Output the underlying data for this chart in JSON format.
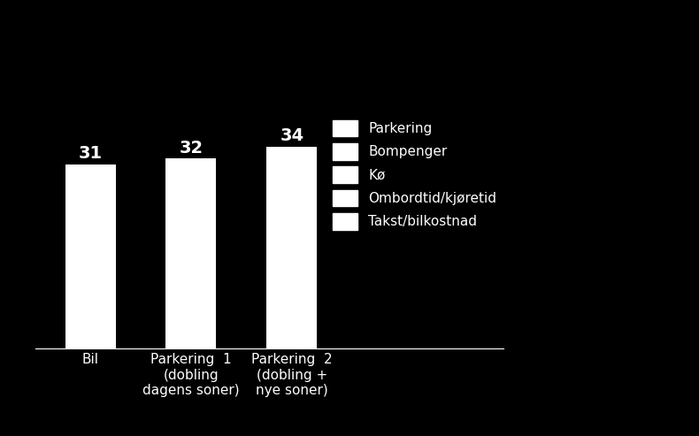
{
  "categories": [
    "Bil",
    "Parkering  1\n(dobling\ndagens soner)",
    "Parkering  2\n(dobling +\nnye soner)"
  ],
  "values": [
    31,
    32,
    34
  ],
  "bar_color": "#ffffff",
  "bar_edgecolor": "#ffffff",
  "background_color": "#000000",
  "text_color": "#ffffff",
  "value_labels": [
    "31",
    "32",
    "34"
  ],
  "ylim": [
    0,
    55
  ],
  "legend_labels": [
    "Parkering",
    "Bompenger",
    "Kø",
    "Ombordtid/kjøretid",
    "Takst/bilkostnad"
  ],
  "legend_color": "#ffffff",
  "bar_width": 0.5,
  "value_fontsize": 14,
  "tick_fontsize": 11,
  "legend_fontsize": 11
}
